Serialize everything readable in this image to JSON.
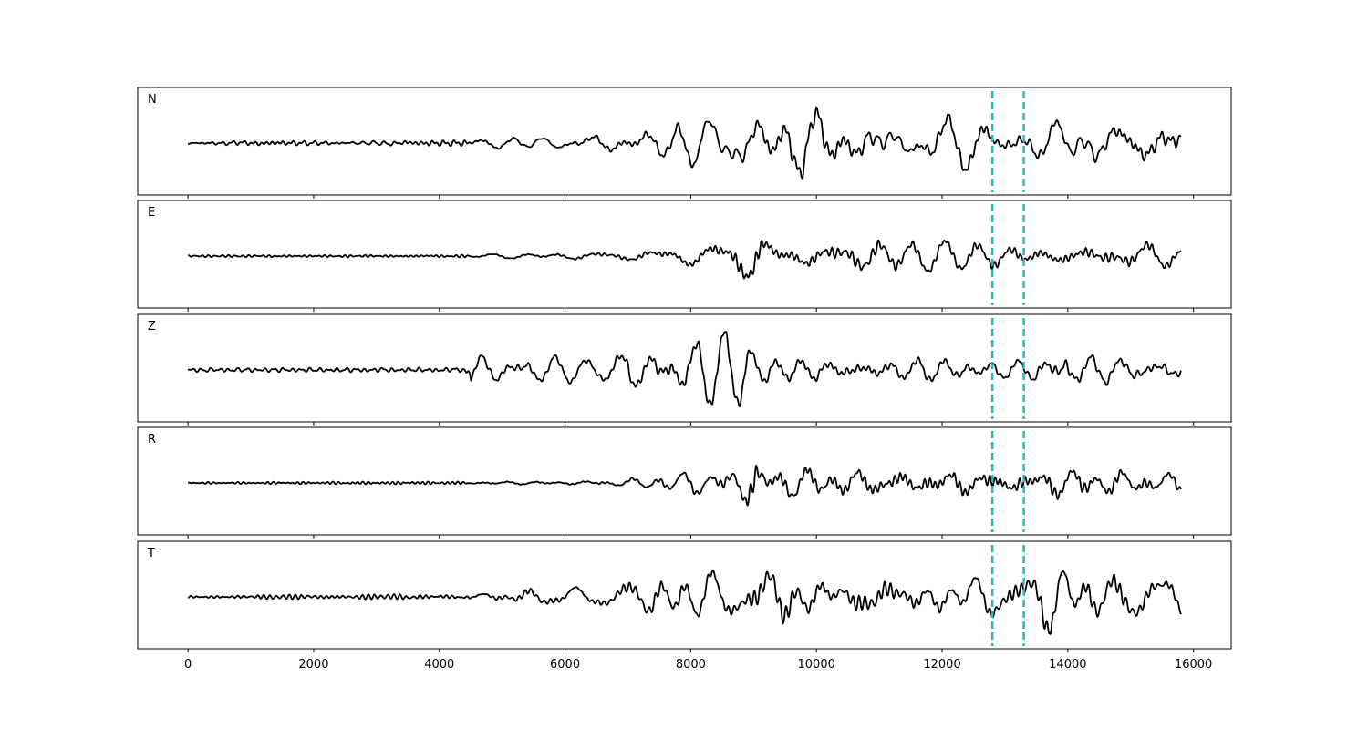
{
  "chart_data": {
    "type": "line",
    "title": "",
    "xlabel": "",
    "ylabel": "",
    "xlim": [
      -800,
      16600
    ],
    "x_ticks": [
      0,
      2000,
      4000,
      6000,
      8000,
      10000,
      12000,
      14000,
      16000
    ],
    "x_tick_labels": [
      "0",
      "2000",
      "4000",
      "6000",
      "8000",
      "10000",
      "12000",
      "14000",
      "16000"
    ],
    "x_range": [
      0,
      15800
    ],
    "vertical_markers": [
      12800,
      13300
    ],
    "marker_color": "#1ebfb3",
    "trace_color": "#000000",
    "grid": false,
    "panels": [
      {
        "label": "N",
        "amplitude_envelope": [
          [
            0,
            0.04
          ],
          [
            4500,
            0.06
          ],
          [
            4600,
            0.12
          ],
          [
            6000,
            0.16
          ],
          [
            7500,
            0.3
          ],
          [
            8000,
            0.62
          ],
          [
            9000,
            0.72
          ],
          [
            10500,
            0.8
          ],
          [
            12000,
            0.62
          ],
          [
            12700,
            0.55
          ],
          [
            12800,
            0.3
          ],
          [
            13300,
            0.38
          ],
          [
            13900,
            0.92
          ],
          [
            14500,
            0.65
          ],
          [
            15800,
            0.5
          ]
        ]
      },
      {
        "label": "E",
        "amplitude_envelope": [
          [
            0,
            0.02
          ],
          [
            4500,
            0.03
          ],
          [
            6000,
            0.07
          ],
          [
            7000,
            0.12
          ],
          [
            7600,
            0.25
          ],
          [
            8500,
            0.45
          ],
          [
            9000,
            0.95
          ],
          [
            9300,
            0.5
          ],
          [
            10000,
            0.42
          ],
          [
            12000,
            0.38
          ],
          [
            13300,
            0.38
          ],
          [
            14000,
            0.42
          ],
          [
            15800,
            0.35
          ]
        ]
      },
      {
        "label": "Z",
        "amplitude_envelope": [
          [
            0,
            0.04
          ],
          [
            4400,
            0.05
          ],
          [
            4500,
            0.3
          ],
          [
            5500,
            0.35
          ],
          [
            6500,
            0.25
          ],
          [
            7000,
            0.6
          ],
          [
            8000,
            0.75
          ],
          [
            8800,
            0.85
          ],
          [
            9000,
            0.55
          ],
          [
            10000,
            0.52
          ],
          [
            12000,
            0.42
          ],
          [
            12800,
            0.3
          ],
          [
            13300,
            0.3
          ],
          [
            13900,
            0.6
          ],
          [
            14500,
            0.4
          ],
          [
            15800,
            0.32
          ]
        ]
      },
      {
        "label": "R",
        "amplitude_envelope": [
          [
            0,
            0.02
          ],
          [
            4500,
            0.03
          ],
          [
            6000,
            0.05
          ],
          [
            7000,
            0.12
          ],
          [
            7600,
            0.25
          ],
          [
            8500,
            0.4
          ],
          [
            9000,
            1.0
          ],
          [
            9300,
            0.5
          ],
          [
            10000,
            0.45
          ],
          [
            12000,
            0.4
          ],
          [
            13300,
            0.4
          ],
          [
            14000,
            0.45
          ],
          [
            15800,
            0.3
          ]
        ]
      },
      {
        "label": "T",
        "amplitude_envelope": [
          [
            0,
            0.04
          ],
          [
            4500,
            0.06
          ],
          [
            5000,
            0.2
          ],
          [
            6500,
            0.22
          ],
          [
            7000,
            0.35
          ],
          [
            7800,
            0.7
          ],
          [
            9000,
            0.68
          ],
          [
            10500,
            0.62
          ],
          [
            12000,
            0.6
          ],
          [
            12800,
            0.5
          ],
          [
            13300,
            0.45
          ],
          [
            13900,
            0.95
          ],
          [
            14600,
            0.6
          ],
          [
            15800,
            0.45
          ]
        ]
      }
    ]
  }
}
